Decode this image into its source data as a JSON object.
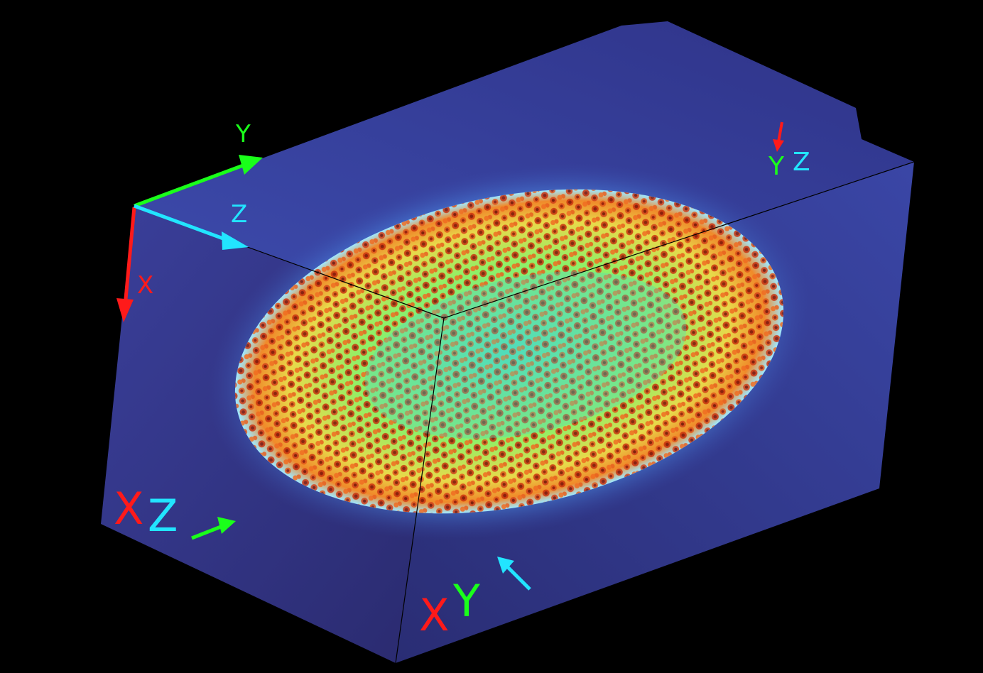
{
  "axes": {
    "x_label": "X",
    "y_label": "Y",
    "z_label": "Z"
  },
  "planes": {
    "xz_x": "X",
    "xz_z": "Z",
    "xy_x": "X",
    "xy_y": "Y",
    "yz_y": "Y",
    "yz_z": "Z"
  },
  "colors": {
    "x_axis": "#ff1a1a",
    "y_axis": "#1aff1a",
    "z_axis": "#22e5ff",
    "background": "#000000",
    "volume_base": "#2e2a78"
  },
  "icons": [
    "x-axis-arrow-icon",
    "y-axis-arrow-icon",
    "z-axis-arrow-icon"
  ]
}
